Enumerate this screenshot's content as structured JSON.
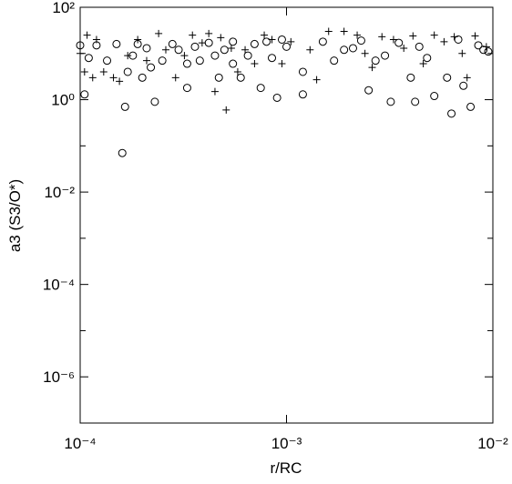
{
  "chart_data": {
    "type": "scatter",
    "xlabel": "r/RC",
    "ylabel": "a3 (S3/O*)",
    "xscale": "log",
    "yscale": "log",
    "xlim": [
      0.0001,
      0.01
    ],
    "ylim": [
      1e-07,
      100
    ],
    "xticks": [
      {
        "value": 0.0001,
        "label": "10⁻⁴"
      },
      {
        "value": 0.001,
        "label": "10⁻³"
      },
      {
        "value": 0.01,
        "label": "10⁻²"
      }
    ],
    "yticks": [
      {
        "value": 1e-06,
        "label": "10⁻⁶"
      },
      {
        "value": 0.0001,
        "label": "10⁻⁴"
      },
      {
        "value": 0.01,
        "label": "10⁻²"
      },
      {
        "value": 1,
        "label": "10⁰"
      },
      {
        "value": 100,
        "label": "10²"
      }
    ],
    "yminorticks": [
      1e-07,
      1e-05,
      0.001,
      0.1,
      10
    ],
    "series": [
      {
        "marker": "circle",
        "color": "#000000",
        "x": [
          0.0001,
          0.000105,
          0.00011,
          0.00012,
          0.000135,
          0.00015,
          0.00016,
          0.000165,
          0.00017,
          0.00018,
          0.00019,
          0.0002,
          0.00021,
          0.00022,
          0.00023,
          0.00025,
          0.00028,
          0.0003,
          0.00033,
          0.00033,
          0.00036,
          0.00038,
          0.00042,
          0.00045,
          0.00047,
          0.0005,
          0.00055,
          0.00055,
          0.0006,
          0.00065,
          0.0007,
          0.00075,
          0.0008,
          0.00085,
          0.0009,
          0.00095,
          0.001,
          0.0012,
          0.0012,
          0.0015,
          0.0017,
          0.0019,
          0.0021,
          0.0023,
          0.0025,
          0.0027,
          0.003,
          0.0032,
          0.0035,
          0.004,
          0.0042,
          0.0044,
          0.0048,
          0.0052,
          0.006,
          0.0063,
          0.0068,
          0.0072,
          0.0078,
          0.0085,
          0.009,
          0.0095
        ],
        "values": [
          15,
          1.3,
          8,
          15,
          7,
          16,
          0.07,
          0.7,
          4,
          9,
          16,
          3,
          13,
          5,
          0.9,
          7,
          16,
          12,
          1.8,
          6,
          14,
          7,
          17,
          9,
          3,
          12,
          18,
          6,
          3,
          9,
          16,
          1.8,
          18,
          8,
          1.1,
          20,
          14,
          4,
          1.3,
          18,
          7,
          12,
          13,
          19,
          1.6,
          7,
          9,
          0.9,
          17,
          3,
          0.9,
          14,
          8,
          1.2,
          3,
          0.5,
          20,
          2,
          0.7,
          15,
          12,
          11
        ]
      },
      {
        "marker": "plus",
        "color": "#000000",
        "x": [
          0.0001,
          0.000105,
          0.000108,
          0.000115,
          0.00012,
          0.00013,
          0.000145,
          0.000155,
          0.00017,
          0.00019,
          0.00021,
          0.00024,
          0.00026,
          0.00029,
          0.00032,
          0.00035,
          0.00039,
          0.00042,
          0.00045,
          0.00048,
          0.00051,
          0.00054,
          0.00058,
          0.00063,
          0.0007,
          0.00078,
          0.00085,
          0.00095,
          0.00105,
          0.0013,
          0.0014,
          0.0016,
          0.0019,
          0.0022,
          0.0024,
          0.0026,
          0.0029,
          0.0033,
          0.0037,
          0.0041,
          0.0046,
          0.0052,
          0.0058,
          0.0065,
          0.0071,
          0.0075,
          0.0082,
          0.0093
        ],
        "values": [
          10,
          4,
          25,
          3,
          20,
          4,
          3,
          2.5,
          9,
          20,
          7,
          27,
          12,
          3,
          9,
          25,
          17,
          27,
          1.5,
          22,
          0.6,
          13,
          4,
          12,
          6,
          25,
          20,
          6,
          18,
          12,
          2.7,
          30,
          30,
          25,
          10,
          5,
          23,
          20,
          13,
          24,
          6,
          25,
          18,
          23,
          10,
          3,
          24,
          14
        ]
      }
    ]
  }
}
